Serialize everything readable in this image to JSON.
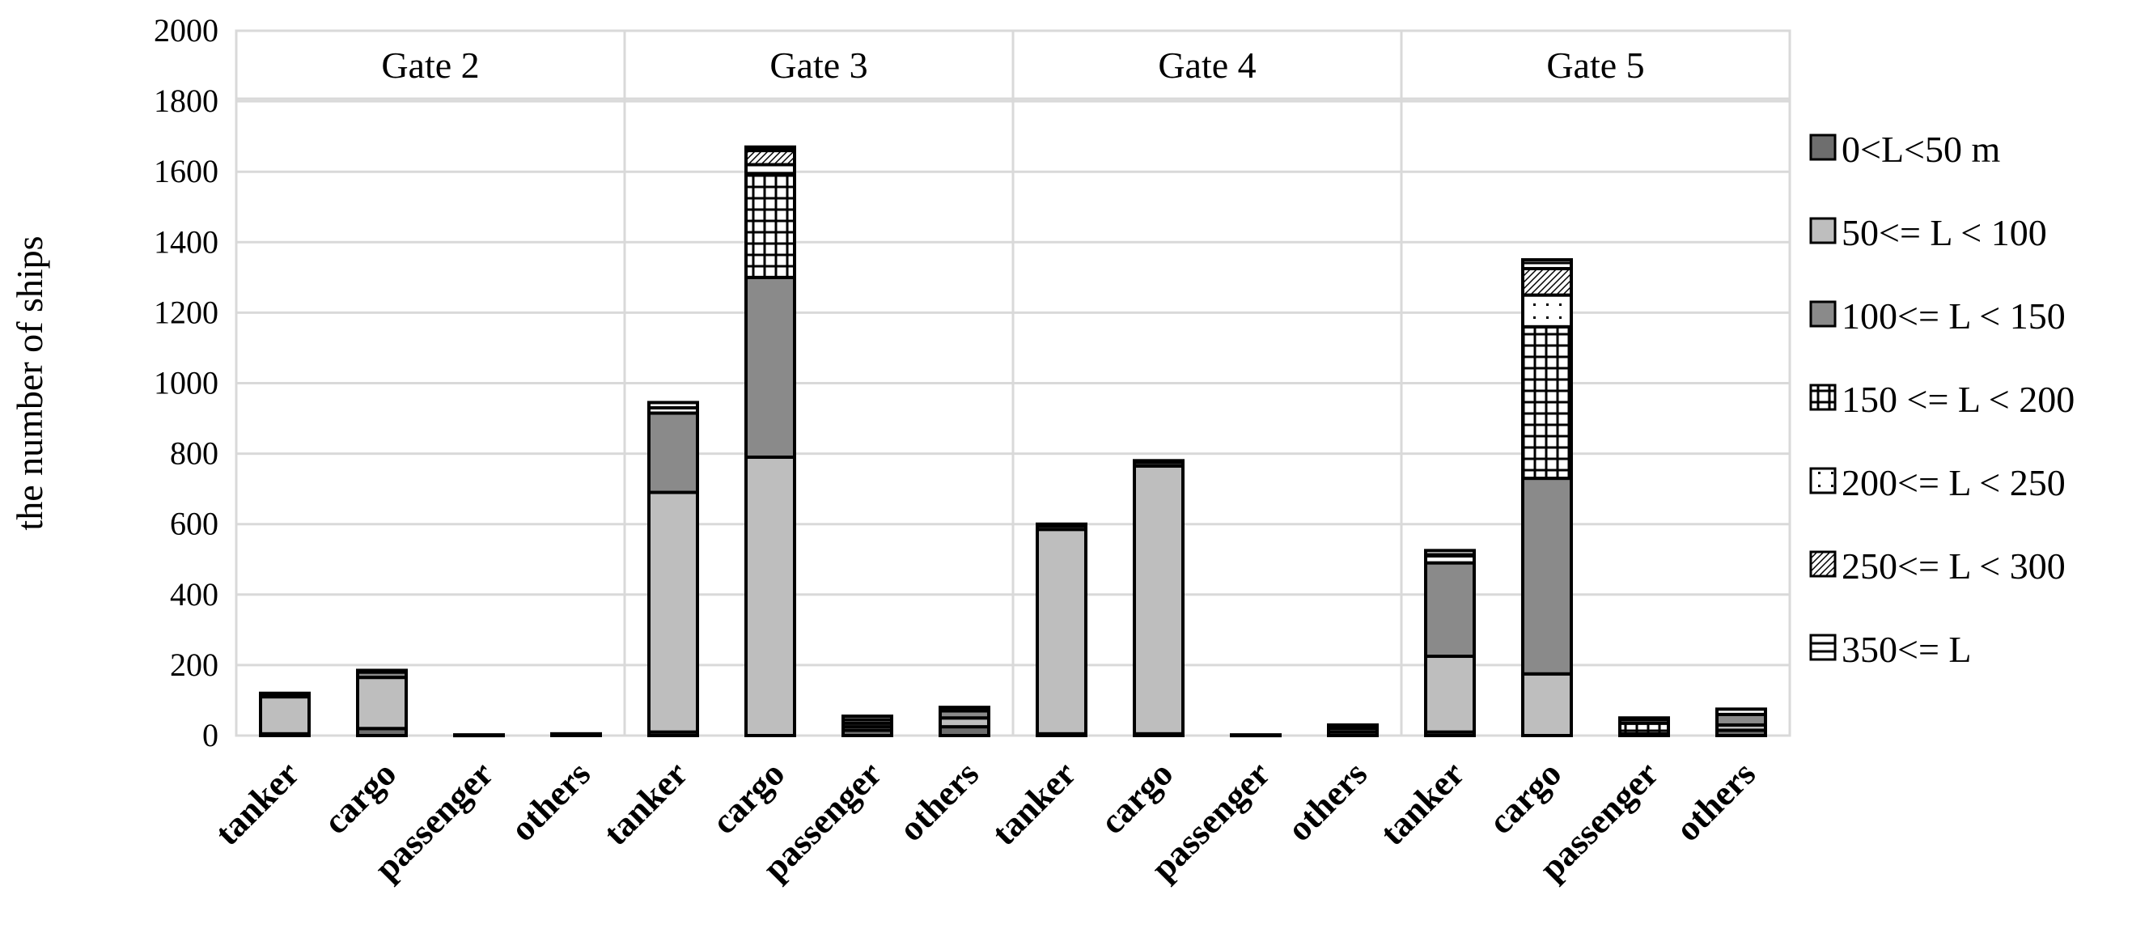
{
  "chart_data": {
    "type": "bar",
    "stacked": true,
    "title": "",
    "xlabel": "",
    "ylabel": "the number of ships",
    "ylim": [
      0,
      2000
    ],
    "yticks": [
      0,
      200,
      400,
      600,
      800,
      1000,
      1200,
      1400,
      1600,
      1800,
      2000
    ],
    "grid": true,
    "legend_position": "right",
    "groups": [
      {
        "name": "Gate 2",
        "categories": [
          "tanker",
          "cargo",
          "passenger",
          "others"
        ]
      },
      {
        "name": "Gate 3",
        "categories": [
          "tanker",
          "cargo",
          "passenger",
          "others"
        ]
      },
      {
        "name": "Gate 4",
        "categories": [
          "tanker",
          "cargo",
          "passenger",
          "others"
        ]
      },
      {
        "name": "Gate 5",
        "categories": [
          "tanker",
          "cargo",
          "passenger",
          "others"
        ]
      }
    ],
    "categories": [
      "tanker",
      "cargo",
      "passenger",
      "others",
      "tanker",
      "cargo",
      "passenger",
      "others",
      "tanker",
      "cargo",
      "passenger",
      "others",
      "tanker",
      "cargo",
      "passenger",
      "others"
    ],
    "series": [
      {
        "name": "0<L<50 m",
        "pattern": "dark",
        "values": [
          5,
          20,
          2,
          5,
          10,
          0,
          15,
          25,
          5,
          5,
          2,
          10,
          10,
          0,
          5,
          15
        ]
      },
      {
        "name": "50<= L < 100",
        "pattern": "light",
        "values": [
          105,
          145,
          0,
          0,
          680,
          790,
          10,
          25,
          580,
          760,
          0,
          10,
          215,
          175,
          0,
          15
        ]
      },
      {
        "name": "100<= L < 150",
        "pattern": "mid",
        "values": [
          5,
          15,
          0,
          0,
          225,
          510,
          10,
          20,
          10,
          10,
          0,
          5,
          265,
          555,
          0,
          30
        ]
      },
      {
        "name": "150 <= L < 200",
        "pattern": "grid",
        "values": [
          0,
          0,
          0,
          0,
          0,
          295,
          0,
          0,
          0,
          0,
          0,
          0,
          0,
          430,
          30,
          0
        ]
      },
      {
        "name": "200<= L < 250",
        "pattern": "dots",
        "values": [
          0,
          0,
          0,
          0,
          15,
          25,
          10,
          0,
          0,
          0,
          0,
          0,
          20,
          90,
          10,
          0
        ]
      },
      {
        "name": "250<= L < 300",
        "pattern": "diag",
        "values": [
          0,
          0,
          0,
          0,
          0,
          40,
          0,
          0,
          0,
          0,
          0,
          0,
          0,
          75,
          0,
          0
        ]
      },
      {
        "name": "350<= L",
        "pattern": "hline",
        "values": [
          5,
          5,
          0,
          0,
          15,
          10,
          10,
          10,
          5,
          5,
          0,
          5,
          15,
          25,
          5,
          15
        ]
      }
    ]
  }
}
